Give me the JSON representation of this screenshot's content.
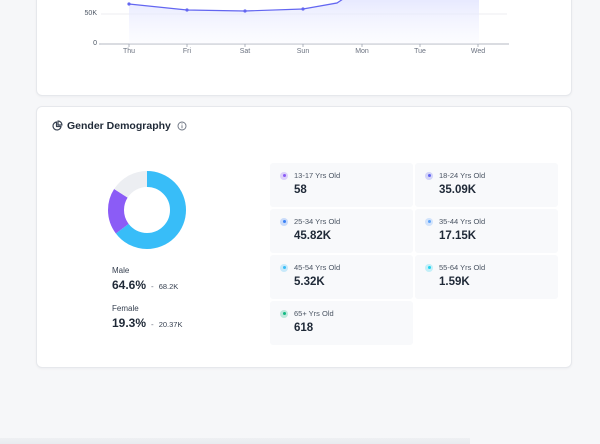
{
  "traffic_chart": {
    "y_ticks": [
      "50K",
      "0"
    ],
    "x_ticks": [
      "Thu",
      "Fri",
      "Sat",
      "Sun",
      "Mon",
      "Tue",
      "Wed"
    ]
  },
  "gender": {
    "title": "Gender Demography",
    "male": {
      "label": "Male",
      "percent": "64.6%",
      "count": "68.2K"
    },
    "female": {
      "label": "Female",
      "percent": "19.3%",
      "count": "20.37K"
    },
    "separator": "-",
    "donut": {
      "segments": [
        {
          "name": "Male",
          "fraction": 0.646,
          "color": "#38bdf8"
        },
        {
          "name": "Female",
          "fraction": 0.193,
          "color": "#8b5cf6"
        },
        {
          "name": "Other",
          "fraction": 0.161,
          "color": "#eceef2"
        }
      ]
    },
    "age_groups": [
      {
        "label": "13-17 Yrs Old",
        "value": "58",
        "color": "#8b5cf6"
      },
      {
        "label": "18-24 Yrs Old",
        "value": "35.09K",
        "color": "#6366f1"
      },
      {
        "label": "25-34 Yrs Old",
        "value": "45.82K",
        "color": "#3b82f6"
      },
      {
        "label": "35-44 Yrs Old",
        "value": "17.15K",
        "color": "#60a5fa"
      },
      {
        "label": "45-54 Yrs Old",
        "value": "5.32K",
        "color": "#38bdf8"
      },
      {
        "label": "55-64 Yrs Old",
        "value": "1.59K",
        "color": "#22d3ee"
      },
      {
        "label": "65+ Yrs Old",
        "value": "618",
        "color": "#10b981"
      }
    ]
  },
  "colors": {
    "line": "#6366f1",
    "area_top": "#e0e3ff",
    "icon": "#374151"
  }
}
